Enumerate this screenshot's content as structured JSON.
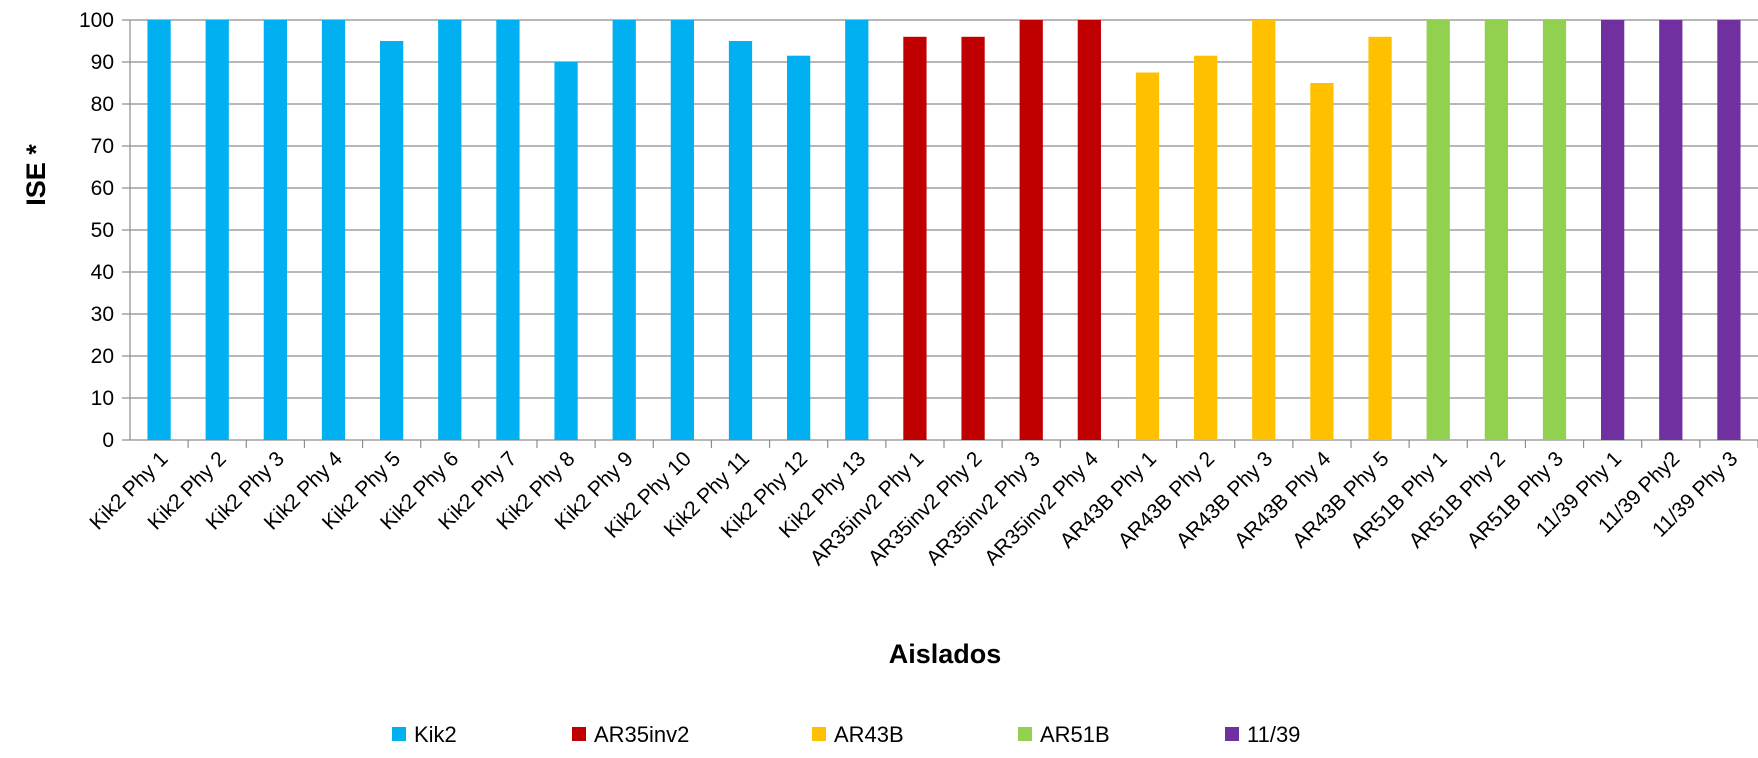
{
  "chart_data": {
    "type": "bar",
    "title": "",
    "xlabel": "Aislados",
    "ylabel": "ISE *",
    "ylim": [
      0,
      100
    ],
    "yticks": [
      0,
      10,
      20,
      30,
      40,
      50,
      60,
      70,
      80,
      90,
      100
    ],
    "grid": true,
    "legend_position": "bottom",
    "categories": [
      "Kik2 Phy 1",
      "Kik2 Phy 2",
      "Kik2 Phy 3",
      "Kik2 Phy 4",
      "Kik2 Phy 5",
      "Kik2 Phy 6",
      "Kik2 Phy 7",
      "Kik2 Phy 8",
      "Kik2 Phy 9",
      "Kik2 Phy 10",
      "Kik2 Phy 11",
      "Kik2 Phy 12",
      "Kik2 Phy 13",
      "AR35inv2 Phy 1",
      "AR35inv2 Phy 2",
      "AR35inv2 Phy 3",
      "AR35inv2 Phy 4",
      "AR43B Phy 1",
      "AR43B Phy 2",
      "AR43B Phy 3",
      "AR43B Phy 4",
      "AR43B Phy 5",
      "AR51B Phy 1",
      "AR51B Phy 2",
      "AR51B Phy 3",
      "11/39 Phy 1",
      "11/39 Phy2",
      "11/39 Phy 3"
    ],
    "values": [
      100,
      100,
      100,
      100,
      95,
      100,
      100,
      90,
      100,
      100,
      95,
      91.5,
      100,
      96,
      96,
      100,
      100,
      87.5,
      91.5,
      100,
      85,
      96,
      100,
      100,
      100,
      100,
      100,
      100
    ],
    "groups": [
      0,
      0,
      0,
      0,
      0,
      0,
      0,
      0,
      0,
      0,
      0,
      0,
      0,
      1,
      1,
      1,
      1,
      2,
      2,
      2,
      2,
      2,
      3,
      3,
      3,
      4,
      4,
      4
    ],
    "series": [
      {
        "name": "Kik2",
        "color": "#00b0f0"
      },
      {
        "name": "AR35inv2",
        "color": "#c00000"
      },
      {
        "name": "AR43B",
        "color": "#ffc000"
      },
      {
        "name": "AR51B",
        "color": "#92d050"
      },
      {
        "name": "11/39",
        "color": "#7030a0"
      }
    ]
  }
}
